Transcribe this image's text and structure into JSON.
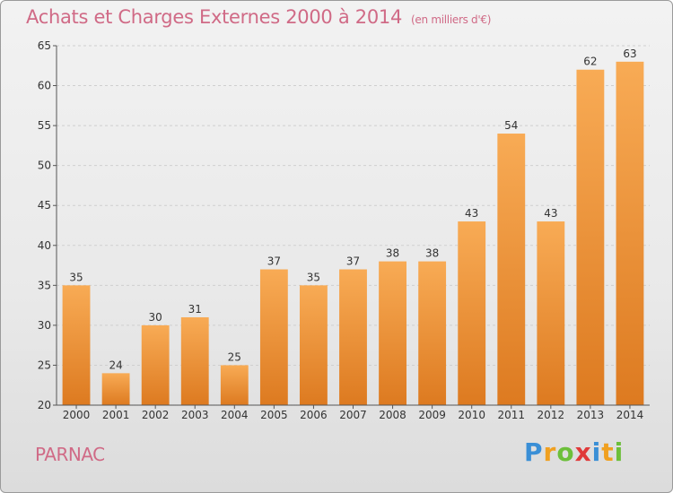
{
  "header": {
    "title": "Achats et Charges Externes 2000 à 2014",
    "unit": "(en milliers d'€)"
  },
  "footer": {
    "commune": "PARNAC",
    "logo_letters": [
      "P",
      "r",
      "o",
      "x",
      "i",
      "t",
      "i"
    ],
    "logo_colors": [
      "#3a8fd6",
      "#f0a020",
      "#6cbf3a",
      "#e03a3a",
      "#3a8fd6",
      "#f0a020",
      "#6cbf3a"
    ]
  },
  "colors": {
    "bar_light": "#f8ab55",
    "bar_dark": "#dd7a20",
    "grid": "#cfcfcf",
    "axis": "#555555",
    "text": "#333333"
  },
  "chart_data": {
    "type": "bar",
    "title": "Achats et Charges Externes 2000 à 2014",
    "categories": [
      "2000",
      "2001",
      "2002",
      "2003",
      "2004",
      "2005",
      "2006",
      "2007",
      "2008",
      "2009",
      "2010",
      "2011",
      "2012",
      "2013",
      "2014"
    ],
    "values": [
      35,
      24,
      30,
      31,
      25,
      37,
      35,
      37,
      38,
      38,
      43,
      54,
      43,
      62,
      63
    ],
    "ylim": [
      20,
      65
    ],
    "yticks": [
      20,
      25,
      30,
      35,
      40,
      45,
      50,
      55,
      60,
      65
    ],
    "grid": true,
    "data_labels": true
  }
}
